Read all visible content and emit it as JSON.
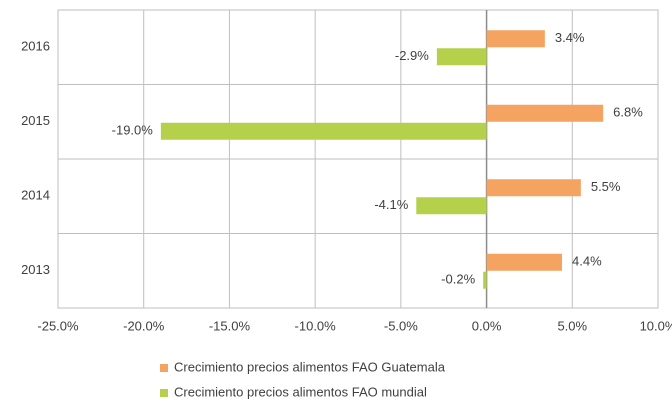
{
  "chart_data": {
    "type": "barh",
    "categories": [
      "2013",
      "2014",
      "2015",
      "2016"
    ],
    "series": [
      {
        "name": "Crecimiento precios alimentos FAO Guatemala",
        "color": "#f4a460",
        "values": [
          4.4,
          5.5,
          6.8,
          3.4
        ],
        "value_labels": [
          "4.4%",
          "5.5%",
          "6.8%",
          "3.4%"
        ]
      },
      {
        "name": "Crecimiento precios alimentos FAO mundial",
        "color": "#b5d14b",
        "values": [
          -0.2,
          -4.1,
          -19.0,
          -2.9
        ],
        "value_labels": [
          "-0.2%",
          "-4.1%",
          "-19.0%",
          "-2.9%"
        ]
      }
    ],
    "xlim": [
      -25,
      10
    ],
    "xticks": [
      {
        "value": -25,
        "label": "-25.0%"
      },
      {
        "value": -20,
        "label": "-20.0%"
      },
      {
        "value": -15,
        "label": "-15.0%"
      },
      {
        "value": -10,
        "label": "-10.0%"
      },
      {
        "value": -5,
        "label": "-5.0%"
      },
      {
        "value": 0,
        "label": "0.0%"
      },
      {
        "value": 5,
        "label": "5.0%"
      },
      {
        "value": 10,
        "label": "10.0%"
      }
    ],
    "grid": true,
    "legend": "bottom"
  }
}
